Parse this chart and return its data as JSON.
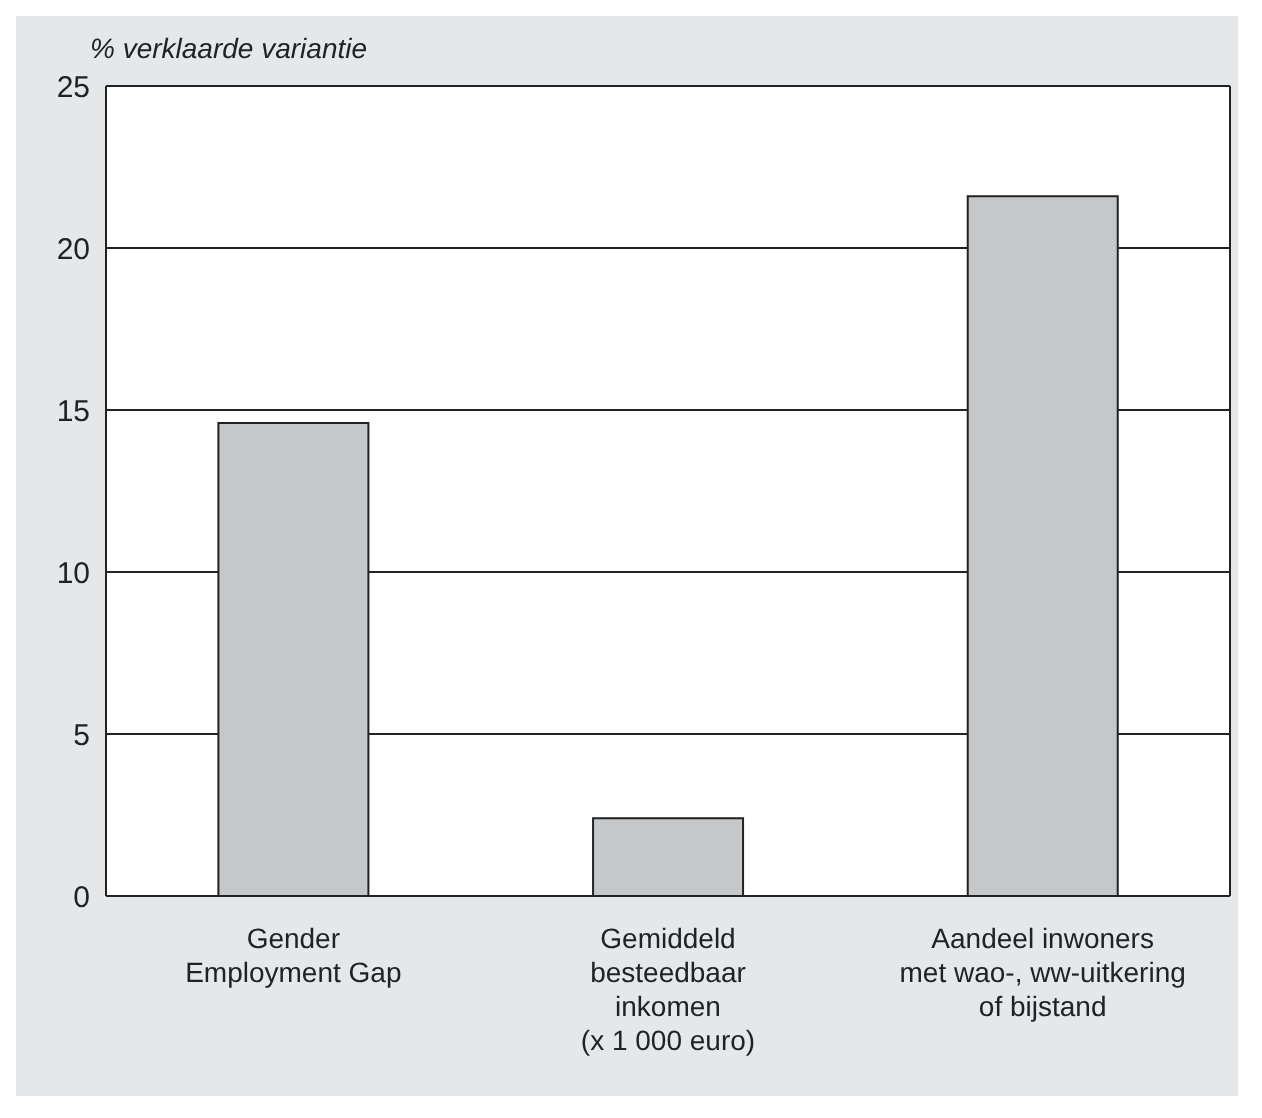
{
  "chart_data": {
    "type": "bar",
    "ylabel": "% verklaarde variantie",
    "categories": [
      "Gender\nEmployment Gap",
      "Gemiddeld\nbesteedbaar\ninkomen\n(x 1 000 euro)",
      "Aandeel inwoners\nmet wao-, ww-uitkering\nof bijstand"
    ],
    "values": [
      14.6,
      2.4,
      21.6
    ],
    "color": "#c6c7c9",
    "ylim": [
      0,
      25
    ],
    "yticks": [
      0,
      5,
      10,
      15,
      20,
      25
    ],
    "grid": "y"
  }
}
